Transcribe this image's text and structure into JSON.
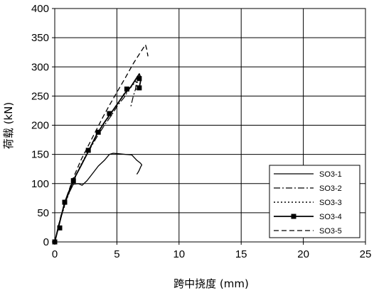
{
  "chart_data": {
    "type": "line",
    "title": "",
    "xlabel": "跨中挠度 (mm)",
    "ylabel": "荷载 (kN)",
    "xlim": [
      0,
      25
    ],
    "ylim": [
      0,
      400
    ],
    "x_ticks": [
      "0",
      "5",
      "10",
      "15",
      "20",
      "25"
    ],
    "y_ticks": [
      "0",
      "50",
      "100",
      "150",
      "200",
      "250",
      "300",
      "350",
      "400"
    ],
    "grid": "major",
    "legend_position": "bottom-right",
    "series": [
      {
        "name": "SO3-1",
        "style": "solid",
        "marker": "none",
        "x": [
          0,
          0.3,
          0.7,
          1.1,
          1.5,
          1.9,
          2.2,
          2.6,
          3.0,
          3.5,
          4.0,
          4.4,
          4.7,
          5.2,
          5.7,
          6.2,
          6.6,
          6.9,
          7.0,
          6.9,
          6.8,
          6.7,
          6.6
        ],
        "y": [
          0,
          28,
          58,
          82,
          99,
          100,
          97,
          105,
          116,
          130,
          140,
          150,
          152,
          151,
          150,
          149,
          140,
          135,
          132,
          128,
          123,
          119,
          116
        ]
      },
      {
        "name": "SO3-2",
        "style": "dashdot",
        "marker": "none",
        "x": [
          0,
          0.5,
          1.0,
          1.6,
          2.2,
          2.8,
          3.4,
          4.0,
          4.6,
          5.1,
          5.6,
          6.0,
          6.3,
          6.6,
          6.5,
          6.3,
          6.1
        ],
        "y": [
          0,
          43,
          77,
          110,
          135,
          158,
          180,
          200,
          218,
          235,
          248,
          262,
          272,
          282,
          262,
          248,
          230
        ]
      },
      {
        "name": "SO3-3",
        "style": "dotted",
        "marker": "none",
        "x": [
          0,
          0.5,
          1.0,
          1.5,
          2.0,
          2.6,
          3.2,
          3.8,
          4.4,
          5.0,
          5.5,
          6.0,
          6.4,
          6.7,
          6.6,
          6.5
        ],
        "y": [
          0,
          42,
          75,
          103,
          128,
          152,
          177,
          198,
          216,
          235,
          250,
          262,
          272,
          283,
          268,
          258
        ]
      },
      {
        "name": "SO3-4",
        "style": "solid",
        "marker": "square",
        "x": [
          0,
          0.3,
          0.8,
          1.5,
          2.1,
          2.7,
          3.4,
          4.0,
          4.5,
          5.1,
          5.6,
          6.1,
          6.5,
          6.8,
          6.9,
          6.9,
          6.8
        ],
        "y": [
          0,
          25,
          68,
          106,
          130,
          155,
          185,
          205,
          220,
          238,
          254,
          265,
          278,
          288,
          282,
          275,
          265
        ]
      },
      {
        "name": "SO3-5",
        "style": "dashed",
        "marker": "none",
        "x": [
          0,
          0.5,
          1.0,
          1.5,
          2.1,
          2.7,
          3.3,
          3.9,
          4.5,
          5.1,
          5.7,
          6.3,
          6.9,
          7.3,
          7.4,
          7.5
        ],
        "y": [
          0,
          45,
          80,
          110,
          140,
          165,
          190,
          215,
          238,
          260,
          282,
          305,
          325,
          338,
          330,
          318
        ]
      }
    ],
    "markers": {
      "SO3-4": {
        "x": [
          0,
          0.4,
          0.8,
          1.5,
          2.7,
          3.5,
          4.4,
          5.8,
          6.8,
          6.8
        ],
        "y": [
          0,
          24,
          68,
          105,
          157,
          188,
          220,
          262,
          280,
          264
        ]
      }
    }
  }
}
